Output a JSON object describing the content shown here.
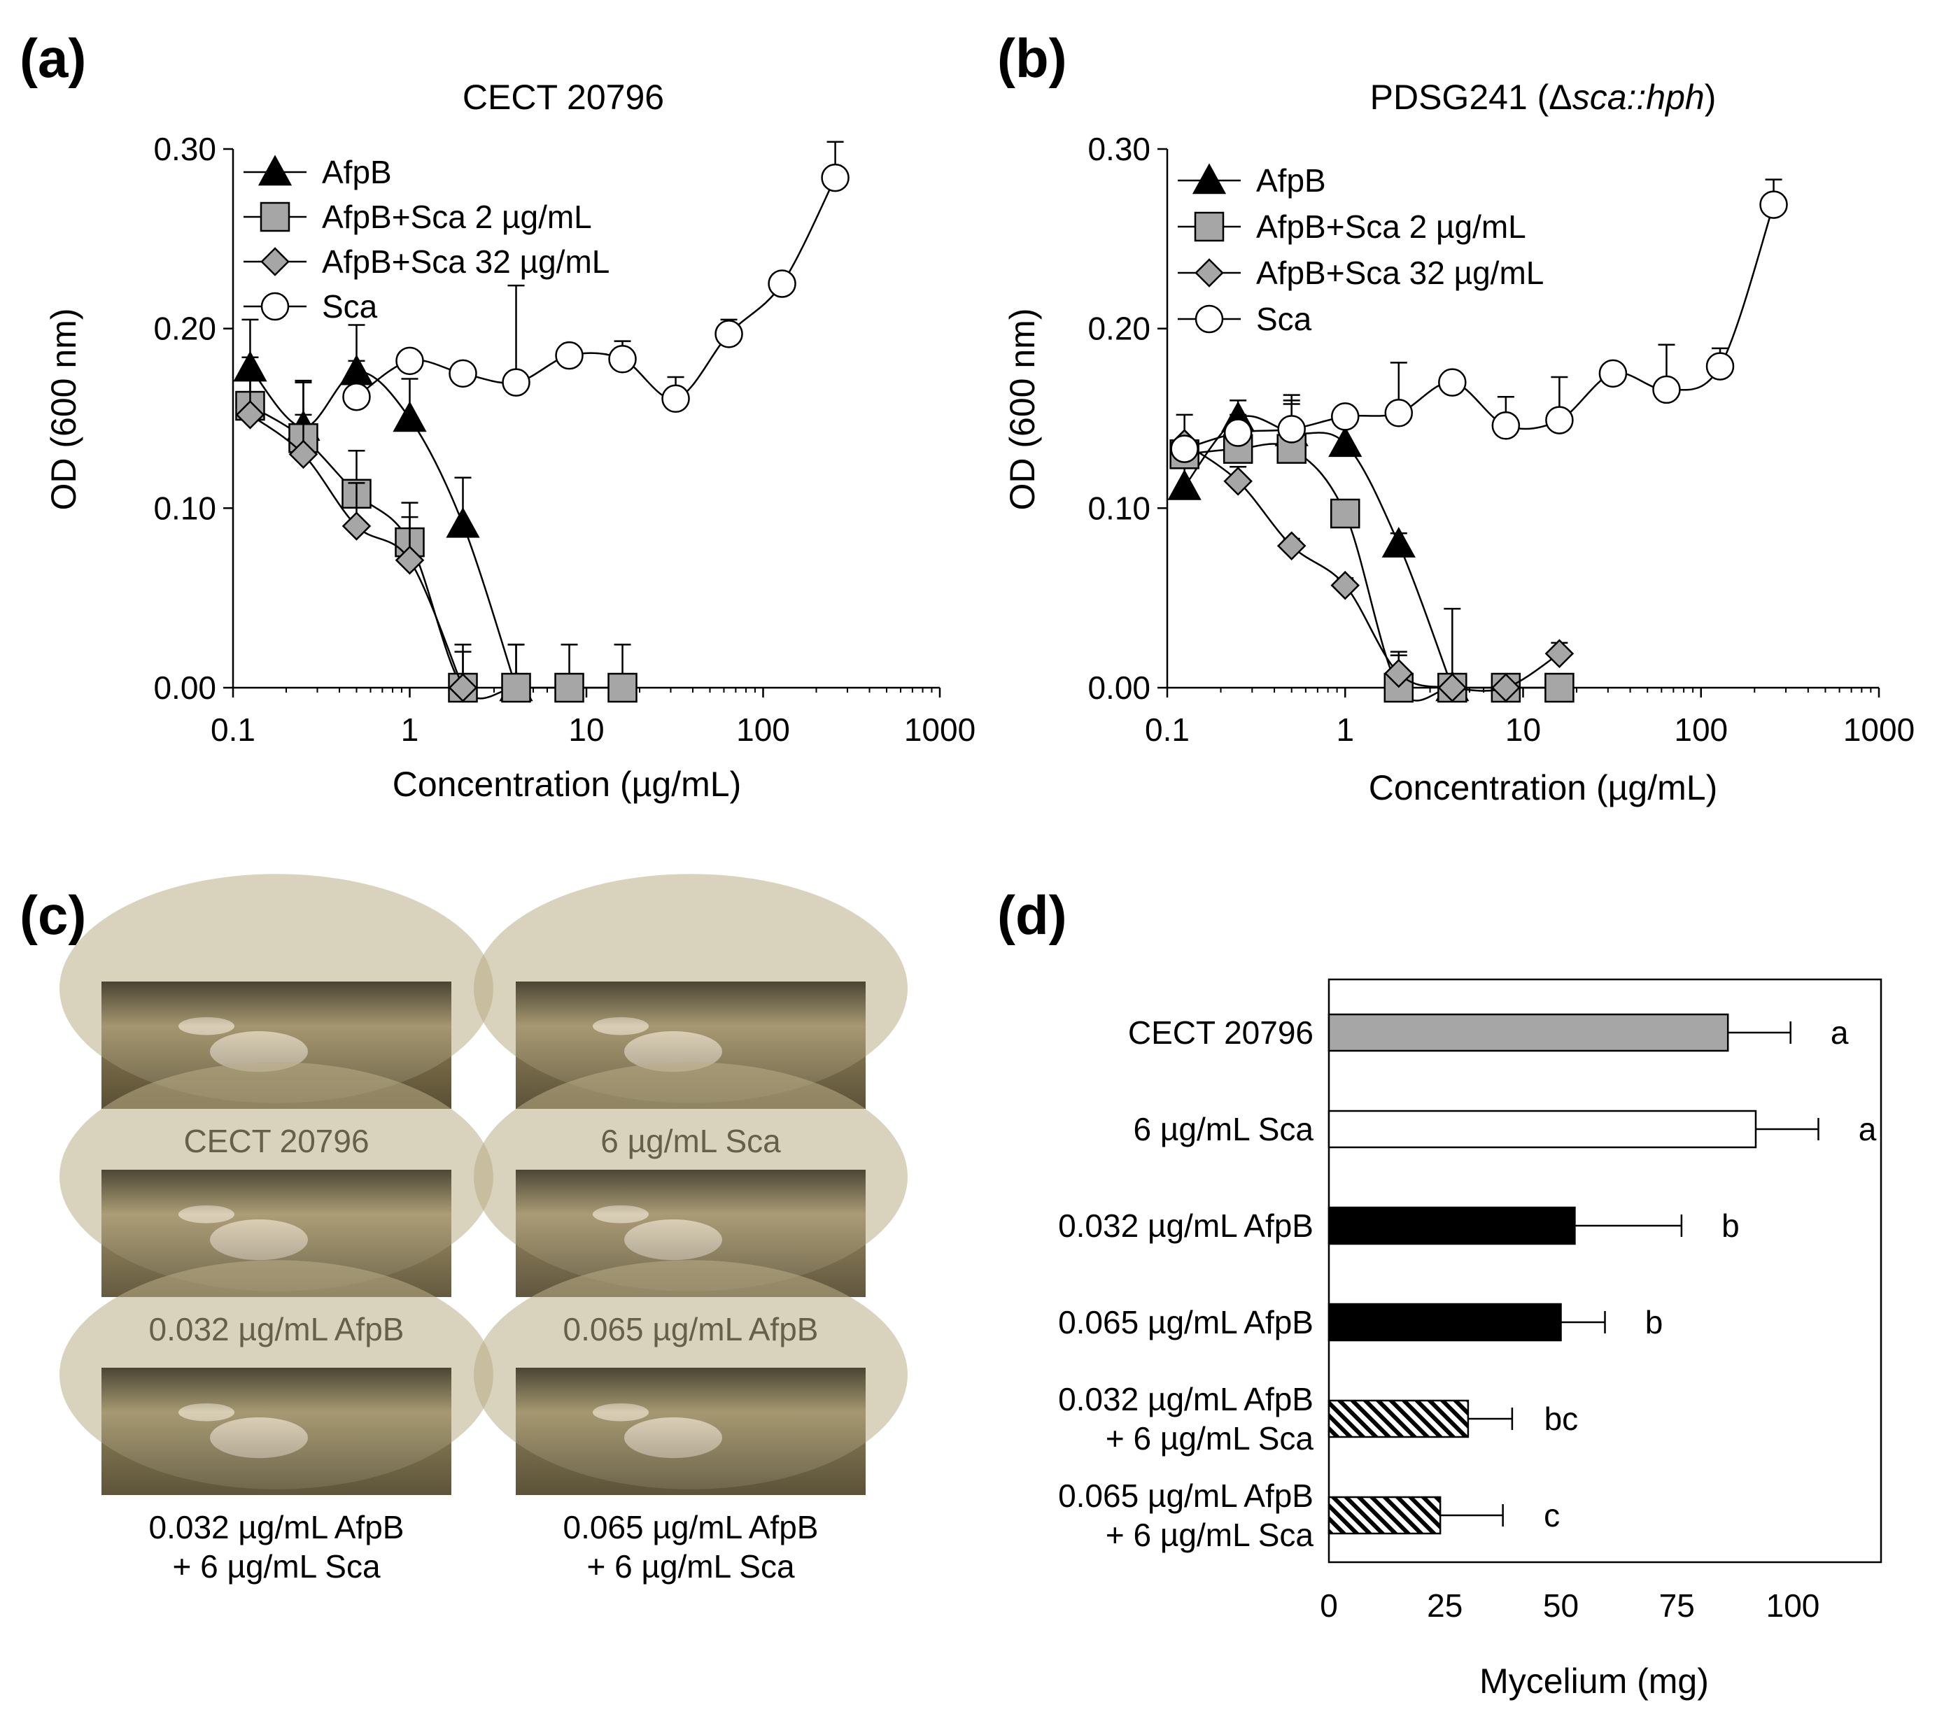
{
  "panels": {
    "a": {
      "letter": "(a)",
      "title": "CECT 20796",
      "xlabel": "Concentration (µg/mL)",
      "ylabel": "OD (600 nm)",
      "x_ticks": [
        "0.1",
        "1",
        "10",
        "100",
        "1000"
      ],
      "y_ticks": [
        "0.00",
        "0.10",
        "0.20",
        "0.30"
      ]
    },
    "b": {
      "letter": "(b)",
      "title_prefix": "PDSG241 (Δ",
      "title_italic": "sca::hph",
      "title_suffix": ")",
      "xlabel": "Concentration (µg/mL)",
      "ylabel": "OD (600 nm)",
      "x_ticks": [
        "0.1",
        "1",
        "10",
        "100",
        "1000"
      ],
      "y_ticks": [
        "0.00",
        "0.10",
        "0.20",
        "0.30"
      ]
    },
    "c": {
      "letter": "(c)",
      "photos": [
        {
          "caption_lines": [
            "CECT 20796"
          ],
          "tone": "#8a7a52"
        },
        {
          "caption_lines": [
            "6 µg/mL Sca"
          ],
          "tone": "#8e7f58"
        },
        {
          "caption_lines": [
            "0.032 µg/mL AfpB"
          ],
          "tone": "#9a8b62"
        },
        {
          "caption_lines": [
            "0.065 µg/mL AfpB"
          ],
          "tone": "#958660"
        },
        {
          "caption_lines": [
            "0.032 µg/mL AfpB",
            "+ 6 µg/mL Sca"
          ],
          "tone": "#8f8259"
        },
        {
          "caption_lines": [
            "0.065 µg/mL AfpB",
            "+ 6 µg/mL Sca"
          ],
          "tone": "#8c7e57"
        }
      ]
    },
    "d": {
      "letter": "(d)",
      "xlabel": "Mycelium (mg)",
      "x_ticks": [
        "0",
        "25",
        "50",
        "75",
        "100"
      ]
    }
  },
  "chart_data": [
    {
      "id": "a",
      "type": "line",
      "title": "CECT 20796",
      "xlabel": "Concentration (µg/mL)",
      "ylabel": "OD (600 nm)",
      "xscale": "log",
      "xlim": [
        0.1,
        1000
      ],
      "ylim": [
        0,
        0.3
      ],
      "legend_position": "top-left",
      "series": [
        {
          "name": "AfpB",
          "marker": "triangle",
          "fill": "#000000",
          "x": [
            0.125,
            0.25,
            0.5,
            1,
            2,
            4
          ],
          "y": [
            0.178,
            0.145,
            0.176,
            0.15,
            0.091,
            0.0
          ],
          "err": [
            0.027,
            0.025,
            0.026,
            0.022,
            0.026,
            0.024
          ]
        },
        {
          "name": "AfpB+Sca 2 µg/mL",
          "marker": "square",
          "fill": "#a6a6a6",
          "x": [
            0.125,
            0.25,
            0.5,
            1,
            2,
            4,
            8,
            16
          ],
          "y": [
            0.157,
            0.139,
            0.108,
            0.081,
            0.0,
            0.0,
            0.0,
            0.0
          ],
          "err": [
            0.027,
            0.032,
            0.024,
            0.022,
            0.024,
            0.024,
            0.024,
            0.024
          ]
        },
        {
          "name": "AfpB+Sca 32 µg/mL",
          "marker": "diamond",
          "fill": "#a6a6a6",
          "x": [
            0.125,
            0.25,
            0.5,
            1,
            2
          ],
          "y": [
            0.152,
            0.13,
            0.09,
            0.071,
            0.0
          ],
          "err": [
            0.024,
            0.022,
            0.024,
            0.024,
            0.02
          ]
        },
        {
          "name": "Sca",
          "marker": "circle",
          "fill": "#ffffff",
          "x": [
            0.5,
            1,
            2,
            4,
            8,
            16,
            32,
            64,
            128,
            256
          ],
          "y": [
            0.162,
            0.182,
            0.175,
            0.17,
            0.185,
            0.183,
            0.161,
            0.197,
            0.225,
            0.284
          ],
          "err": [
            0.02,
            0.0,
            0.006,
            0.054,
            0.0,
            0.01,
            0.012,
            0.008,
            0.0,
            0.02
          ]
        }
      ]
    },
    {
      "id": "b",
      "type": "line",
      "title": "PDSG241 (Δsca::hph)",
      "xlabel": "Concentration (µg/mL)",
      "ylabel": "OD (600 nm)",
      "xscale": "log",
      "xlim": [
        0.1,
        1000
      ],
      "ylim": [
        0,
        0.3
      ],
      "legend_position": "top-left",
      "series": [
        {
          "name": "AfpB",
          "marker": "triangle",
          "fill": "#000000",
          "x": [
            0.125,
            0.25,
            0.5,
            1,
            2,
            4
          ],
          "y": [
            0.112,
            0.15,
            0.142,
            0.136,
            0.08,
            0.0
          ],
          "err": [
            0.022,
            0.01,
            0.016,
            0.01,
            0.006,
            0.044
          ]
        },
        {
          "name": "AfpB+Sca 2 µg/mL",
          "marker": "square",
          "fill": "#a6a6a6",
          "x": [
            0.125,
            0.25,
            0.5,
            1,
            2,
            4,
            8,
            16
          ],
          "y": [
            0.13,
            0.133,
            0.133,
            0.097,
            0.0,
            0.0,
            0.0,
            0.0
          ],
          "err": [
            0.0,
            0.015,
            0.03,
            0.0,
            0.02,
            0.0,
            0.0,
            0.0
          ]
        },
        {
          "name": "AfpB+Sca 32 µg/mL",
          "marker": "diamond",
          "fill": "#a6a6a6",
          "x": [
            0.125,
            0.25,
            0.5,
            1,
            2,
            4,
            8,
            16
          ],
          "y": [
            0.136,
            0.115,
            0.079,
            0.057,
            0.008,
            0.0,
            0.0,
            0.019
          ],
          "err": [
            0.016,
            0.008,
            0.004,
            0.004,
            0.01,
            0.0,
            0.0,
            0.006
          ]
        },
        {
          "name": "Sca",
          "marker": "circle",
          "fill": "#ffffff",
          "x": [
            0.125,
            0.25,
            0.5,
            1,
            2,
            4,
            8,
            16,
            32,
            64,
            128,
            256
          ],
          "y": [
            0.133,
            0.142,
            0.144,
            0.151,
            0.153,
            0.17,
            0.146,
            0.149,
            0.175,
            0.166,
            0.179,
            0.269
          ],
          "err": [
            0.0,
            0.01,
            0.016,
            0.0,
            0.028,
            0.006,
            0.016,
            0.024,
            0.0,
            0.025,
            0.01,
            0.014
          ]
        }
      ]
    },
    {
      "id": "d",
      "type": "bar",
      "orientation": "horizontal",
      "xlabel": "Mycelium (mg)",
      "xlim": [
        0,
        119
      ],
      "categories": [
        [
          "CECT 20796"
        ],
        [
          "6 µg/mL Sca"
        ],
        [
          "0.032 µg/mL AfpB"
        ],
        [
          "0.065 µg/mL AfpB"
        ],
        [
          "0.032 µg/mL AfpB",
          "+ 6 µg/mL Sca"
        ],
        [
          "0.065 µg/mL AfpB",
          "+ 6 µg/mL Sca"
        ]
      ],
      "values": [
        86,
        92,
        53,
        50,
        30,
        24
      ],
      "errors": [
        13.5,
        13.5,
        23,
        9.5,
        9.5,
        13.5
      ],
      "fills": [
        "gray",
        "white",
        "black",
        "black",
        "hatch",
        "hatch"
      ],
      "significance": [
        "a",
        "a",
        "b",
        "b",
        "bc",
        "c"
      ]
    }
  ]
}
